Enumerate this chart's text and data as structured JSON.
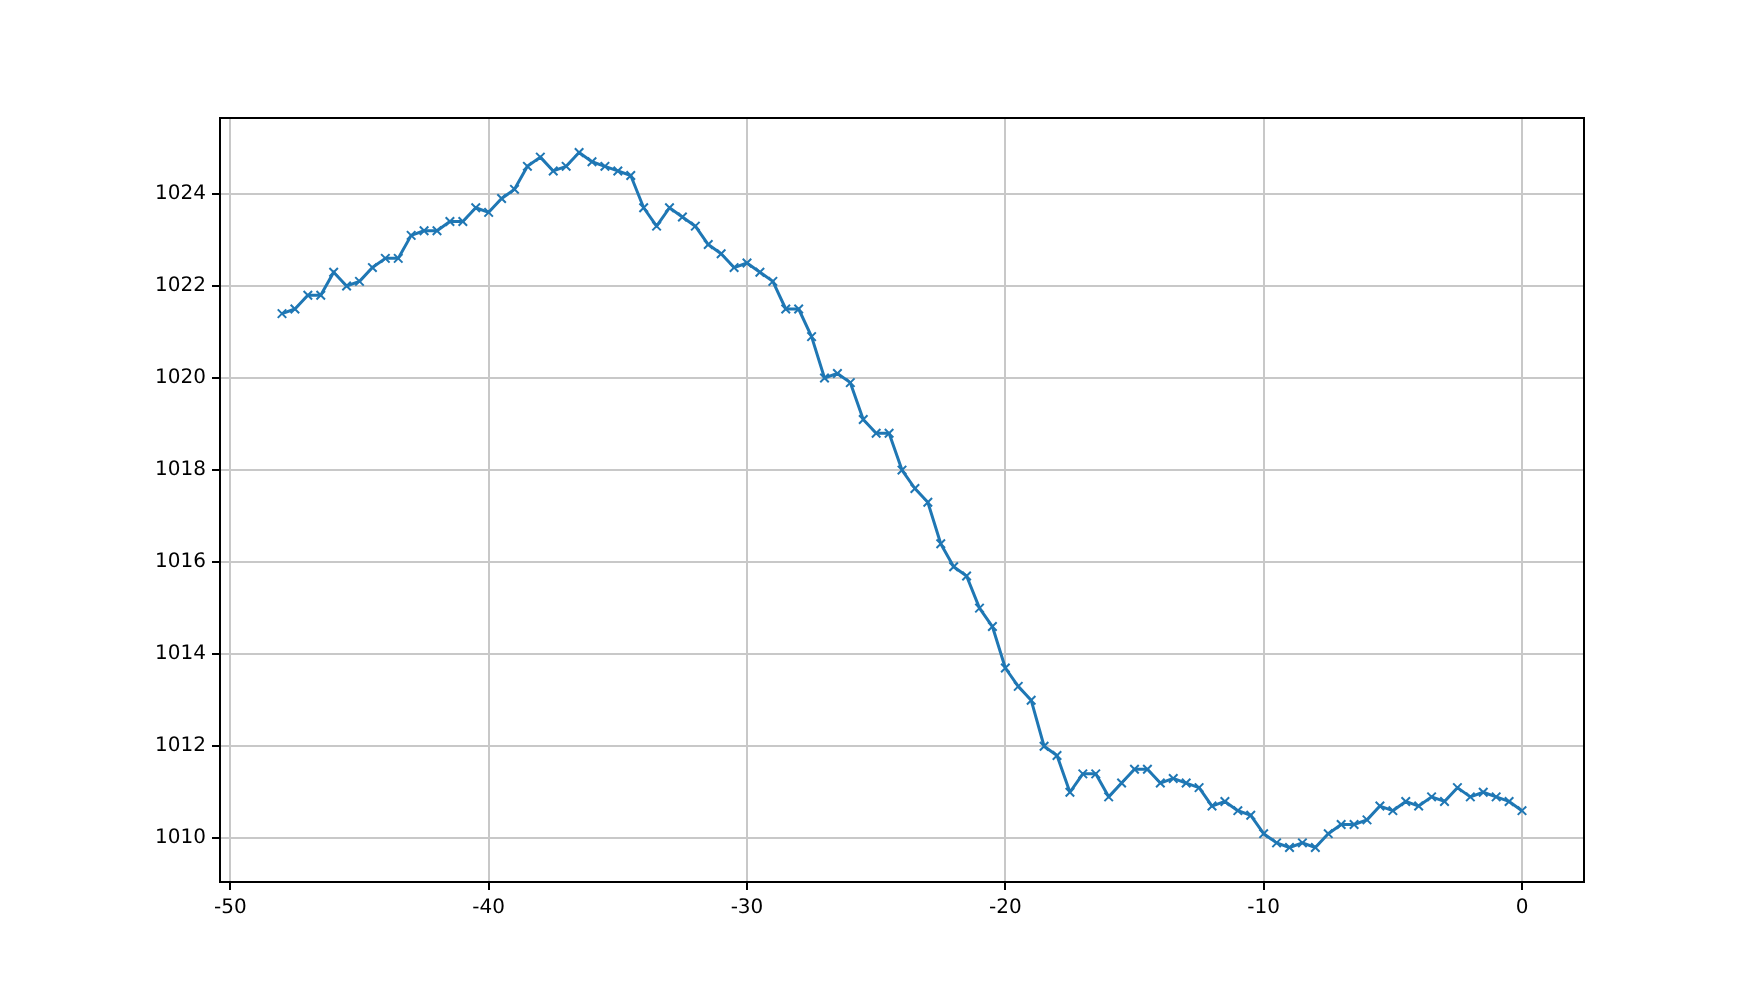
{
  "chart_data": {
    "type": "line",
    "x": [
      -48,
      -47.5,
      -47,
      -46.5,
      -46,
      -45.5,
      -45,
      -44.5,
      -44,
      -43.5,
      -43,
      -42.5,
      -42,
      -41.5,
      -41,
      -40.5,
      -40,
      -39.5,
      -39,
      -38.5,
      -38,
      -37.5,
      -37,
      -36.5,
      -36,
      -35.5,
      -35,
      -34.5,
      -34,
      -33.5,
      -33,
      -32.5,
      -32,
      -31.5,
      -31,
      -30.5,
      -30,
      -29.5,
      -29,
      -28.5,
      -28,
      -27.5,
      -27,
      -26.5,
      -26,
      -25.5,
      -25,
      -24.5,
      -24,
      -23.5,
      -23,
      -22.5,
      -22,
      -21.5,
      -21,
      -20.5,
      -20,
      -19.5,
      -19,
      -18.5,
      -18,
      -17.5,
      -17,
      -16.5,
      -16,
      -15.5,
      -15,
      -14.5,
      -14,
      -13.5,
      -13,
      -12.5,
      -12,
      -11.5,
      -11,
      -10.5,
      -10,
      -9.5,
      -9,
      -8.5,
      -8,
      -7.5,
      -7,
      -6.5,
      -6,
      -5.5,
      -5,
      -4.5,
      -4,
      -3.5,
      -3,
      -2.5,
      -2,
      -1.5,
      -1,
      -0.5,
      0
    ],
    "series": [
      {
        "color": "#1f77b4",
        "values": [
          1021.4,
          1021.5,
          1021.8,
          1021.8,
          1022.3,
          1022.0,
          1022.1,
          1022.4,
          1022.6,
          1022.6,
          1023.1,
          1023.2,
          1023.2,
          1023.4,
          1023.4,
          1023.7,
          1023.6,
          1023.9,
          1024.1,
          1024.6,
          1024.8,
          1024.5,
          1024.6,
          1024.9,
          1024.7,
          1024.6,
          1024.5,
          1024.4,
          1023.7,
          1023.3,
          1023.7,
          1023.5,
          1023.3,
          1022.9,
          1022.7,
          1022.4,
          1022.5,
          1022.3,
          1022.1,
          1021.5,
          1021.5,
          1020.9,
          1020.0,
          1020.1,
          1019.9,
          1019.1,
          1018.8,
          1018.8,
          1018.0,
          1017.6,
          1017.3,
          1016.4,
          1015.9,
          1015.7,
          1015.0,
          1014.6,
          1013.7,
          1013.3,
          1013.0,
          1012.0,
          1011.8,
          1011.0,
          1011.4,
          1011.4,
          1010.9,
          1011.2,
          1011.5,
          1011.5,
          1011.2,
          1011.3,
          1011.2,
          1011.1,
          1010.7,
          1010.8,
          1010.6,
          1010.5,
          1010.1,
          1009.9,
          1009.8,
          1009.9,
          1009.8,
          1010.1,
          1010.3,
          1010.3,
          1010.4,
          1010.7,
          1010.6,
          1010.8,
          1010.7,
          1010.9,
          1010.8,
          1011.1,
          1010.9,
          1011.0,
          1010.9,
          1010.8,
          1010.6
        ]
      }
    ],
    "xlim": [
      -50.4,
      2.4
    ],
    "xticks": [
      -50,
      -40,
      -30,
      -20,
      -10,
      0
    ],
    "ylim": [
      1009.05,
      1025.65
    ],
    "yticks": [
      1010,
      1012,
      1014,
      1016,
      1018,
      1020,
      1022,
      1024
    ],
    "grid": true,
    "marker": "cross",
    "line_style": "solid"
  }
}
